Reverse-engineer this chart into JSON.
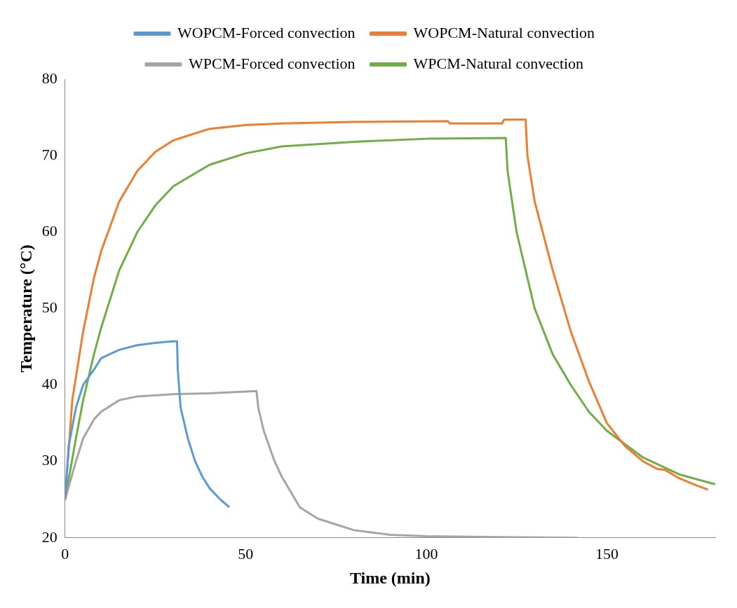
{
  "chart_data": {
    "type": "line",
    "xlabel": "Time (min)",
    "ylabel": "Temperature (°C)",
    "xlim": [
      0,
      180
    ],
    "xticks": [
      0,
      50,
      100,
      150
    ],
    "ylim": [
      20,
      80
    ],
    "yticks": [
      20,
      30,
      40,
      50,
      60,
      70,
      80
    ],
    "grid": false,
    "legend": "top",
    "marker": "none",
    "line_style": "solid",
    "series": [
      {
        "name": "WOPCM-Forced convection",
        "color": "#5b9bd5",
        "x": [
          0,
          1,
          3,
          5,
          8,
          10,
          15,
          20,
          25,
          30,
          31,
          31.2,
          32,
          34,
          36,
          38,
          40,
          43,
          45.5
        ],
        "values": [
          25,
          32,
          37,
          40,
          42,
          43.5,
          44.6,
          45.2,
          45.5,
          45.7,
          45.7,
          42,
          37,
          33,
          30,
          28,
          26.5,
          25,
          24
        ]
      },
      {
        "name": "WOPCM-Natural convection",
        "color": "#ed7d31",
        "x": [
          0,
          2,
          5,
          8,
          10,
          15,
          20,
          25,
          30,
          40,
          50,
          60,
          80,
          106,
          106.5,
          121,
          121.5,
          127.5,
          128,
          130,
          135,
          140,
          145,
          150,
          155,
          160,
          164,
          166,
          170,
          174,
          178
        ],
        "values": [
          25,
          38,
          47,
          54,
          57.5,
          64,
          68,
          70.5,
          72,
          73.5,
          74,
          74.2,
          74.4,
          74.5,
          74.2,
          74.2,
          74.7,
          74.7,
          70,
          64,
          55,
          47,
          40.5,
          35,
          32,
          30,
          29,
          28.9,
          27.8,
          27,
          26.3
        ]
      },
      {
        "name": "WPCM-Forced convection",
        "color": "#a5a5a5",
        "x": [
          0,
          3,
          5,
          8,
          10,
          15,
          20,
          30,
          40,
          53,
          53.5,
          55,
          58,
          60,
          65,
          70,
          80,
          90,
          100,
          120,
          142
        ],
        "values": [
          25,
          30,
          33,
          35.5,
          36.5,
          38,
          38.5,
          38.8,
          38.9,
          39.2,
          37,
          34,
          30,
          28,
          24,
          22.5,
          21,
          20.4,
          20.2,
          20.1,
          20
        ]
      },
      {
        "name": "WPCM-Natural convection",
        "color": "#70ad47",
        "x": [
          0,
          3,
          5,
          8,
          10,
          15,
          20,
          25,
          30,
          40,
          50,
          60,
          80,
          100,
          122,
          122.5,
          125,
          130,
          135,
          140,
          145,
          150,
          160,
          170,
          180
        ],
        "values": [
          25,
          33,
          38,
          44,
          47.5,
          55,
          60,
          63.5,
          66,
          68.8,
          70.3,
          71.2,
          71.8,
          72.2,
          72.3,
          68,
          60,
          50,
          44,
          40,
          36.5,
          34,
          30.5,
          28.3,
          27
        ]
      }
    ]
  }
}
